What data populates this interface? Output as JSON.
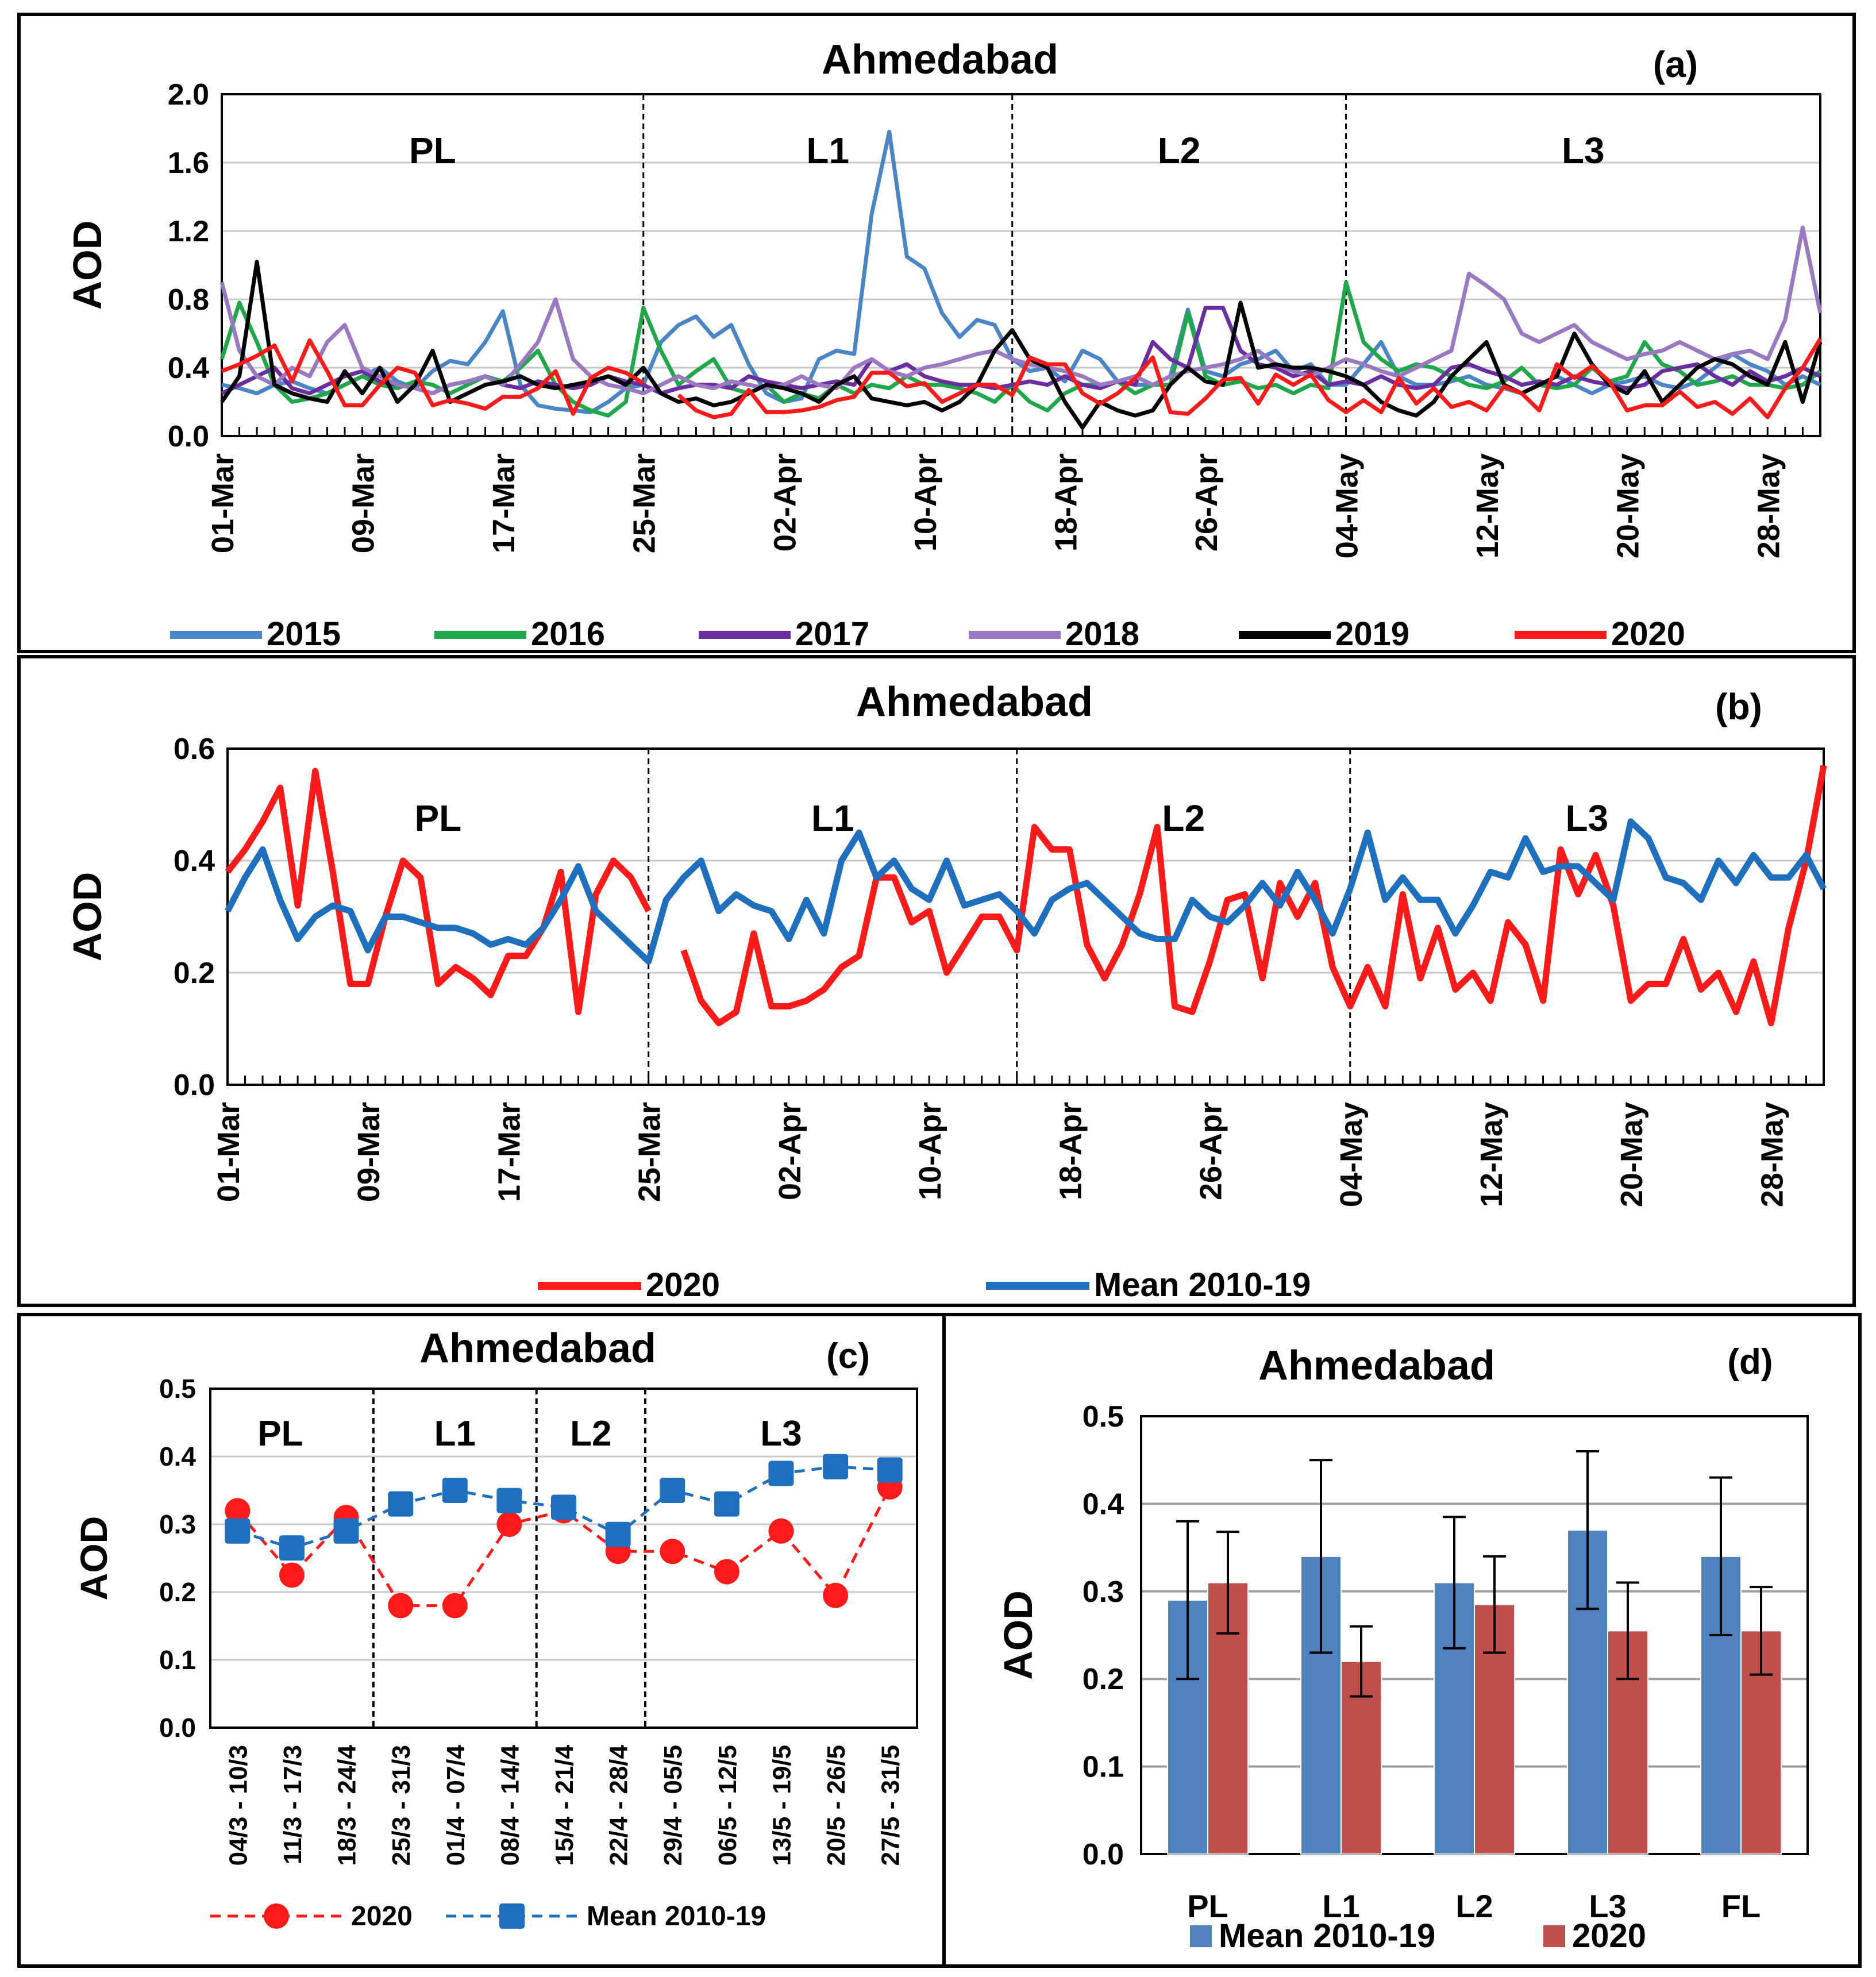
{
  "colors": {
    "c2015": "#4a86c6",
    "c2016": "#1fa84a",
    "c2017": "#6a2ea0",
    "c2018": "#9a78c2",
    "c2019": "#000000",
    "c2020": "#ff1a1a",
    "mean": "#1f6fbf",
    "bar_mean": "#4f81bd",
    "bar_2020": "#c0504d",
    "grid": "#c8c8c8"
  },
  "chart_data": [
    {
      "id": "a",
      "type": "line",
      "title": "Ahmedabad",
      "panel_label": "(a)",
      "ylabel": "AOD",
      "ylim": [
        0,
        2.0
      ],
      "yticks": [
        "0.0",
        "0.4",
        "0.8",
        "1.2",
        "1.6",
        "2.0"
      ],
      "xticks": [
        "01-Mar",
        "09-Mar",
        "17-Mar",
        "25-Mar",
        "02-Apr",
        "10-Apr",
        "18-Apr",
        "26-Apr",
        "04-May",
        "12-May",
        "20-May",
        "28-May"
      ],
      "n_days": 92,
      "phases": [
        "PL",
        "L1",
        "L2",
        "L3"
      ],
      "phase_boundaries": [
        24,
        45,
        64
      ],
      "legend": [
        "2015",
        "2016",
        "2017",
        "2018",
        "2019",
        "2020"
      ],
      "series": [
        {
          "name": "2015",
          "color_key": "c2015",
          "values": [
            0.3,
            0.28,
            0.25,
            0.3,
            0.32,
            0.28,
            0.25,
            0.3,
            0.35,
            0.4,
            0.32,
            0.28,
            0.38,
            0.44,
            0.42,
            0.55,
            0.73,
            0.3,
            0.18,
            0.16,
            0.15,
            0.14,
            0.2,
            0.28,
            0.3,
            0.55,
            0.65,
            0.7,
            0.58,
            0.65,
            0.42,
            0.25,
            0.2,
            0.22,
            0.45,
            0.5,
            0.48,
            1.3,
            1.78,
            1.05,
            0.98,
            0.72,
            0.58,
            0.68,
            0.65,
            0.45,
            0.38,
            0.4,
            0.32,
            0.5,
            0.45,
            0.32,
            0.3,
            0.3,
            0.35,
            0.74,
            0.38,
            0.35,
            0.42,
            0.45,
            0.5,
            0.38,
            0.42,
            0.3,
            0.3,
            0.42,
            0.55,
            0.35,
            0.3,
            0.3,
            0.32,
            0.35,
            0.3,
            0.28,
            0.25,
            0.3,
            0.35,
            0.3,
            0.25,
            0.3,
            0.32,
            0.35,
            0.3,
            0.28,
            0.32,
            0.4,
            0.48,
            0.42,
            0.38,
            0.3,
            0.35,
            0.3
          ]
        },
        {
          "name": "2016",
          "color_key": "c2016",
          "values": [
            0.45,
            0.78,
            0.55,
            0.3,
            0.2,
            0.22,
            0.25,
            0.3,
            0.35,
            0.3,
            0.28,
            0.32,
            0.3,
            0.25,
            0.3,
            0.35,
            0.32,
            0.4,
            0.5,
            0.3,
            0.2,
            0.15,
            0.12,
            0.2,
            0.75,
            0.5,
            0.3,
            0.38,
            0.45,
            0.28,
            0.25,
            0.3,
            0.2,
            0.25,
            0.22,
            0.3,
            0.25,
            0.3,
            0.28,
            0.35,
            0.3,
            0.3,
            0.28,
            0.25,
            0.2,
            0.3,
            0.2,
            0.15,
            0.25,
            0.3,
            0.3,
            0.32,
            0.25,
            0.3,
            0.3,
            0.72,
            0.35,
            0.3,
            0.32,
            0.28,
            0.3,
            0.25,
            0.3,
            0.28,
            0.9,
            0.55,
            0.45,
            0.38,
            0.42,
            0.4,
            0.35,
            0.3,
            0.28,
            0.32,
            0.4,
            0.3,
            0.28,
            0.3,
            0.4,
            0.32,
            0.35,
            0.55,
            0.42,
            0.38,
            0.3,
            0.32,
            0.35,
            0.3,
            0.3,
            0.28,
            0.3,
            0.38
          ]
        },
        {
          "name": "2017",
          "color_key": "c2017",
          "values": [
            0.25,
            0.3,
            0.35,
            0.4,
            0.28,
            0.25,
            0.3,
            0.35,
            0.38,
            0.32,
            0.3,
            0.28,
            0.25,
            0.3,
            0.32,
            0.35,
            0.3,
            0.28,
            0.32,
            0.3,
            0.28,
            0.3,
            0.35,
            0.32,
            0.3,
            0.25,
            0.28,
            0.3,
            0.3,
            0.28,
            0.35,
            0.32,
            0.3,
            0.28,
            0.3,
            0.32,
            0.3,
            0.45,
            0.38,
            0.42,
            0.35,
            0.32,
            0.3,
            0.3,
            0.28,
            0.3,
            0.32,
            0.3,
            0.35,
            0.3,
            0.28,
            0.32,
            0.3,
            0.55,
            0.45,
            0.4,
            0.75,
            0.75,
            0.5,
            0.42,
            0.4,
            0.35,
            0.38,
            0.3,
            0.32,
            0.3,
            0.35,
            0.3,
            0.28,
            0.3,
            0.4,
            0.42,
            0.38,
            0.35,
            0.3,
            0.32,
            0.3,
            0.35,
            0.32,
            0.3,
            0.28,
            0.3,
            0.38,
            0.4,
            0.42,
            0.35,
            0.3,
            0.38,
            0.32,
            0.35,
            0.4,
            0.35
          ]
        },
        {
          "name": "2018",
          "color_key": "c2018",
          "values": [
            0.9,
            0.5,
            0.35,
            0.3,
            0.4,
            0.35,
            0.55,
            0.65,
            0.4,
            0.35,
            0.3,
            0.28,
            0.25,
            0.3,
            0.32,
            0.35,
            0.3,
            0.42,
            0.55,
            0.8,
            0.45,
            0.35,
            0.3,
            0.28,
            0.25,
            0.3,
            0.35,
            0.3,
            0.28,
            0.32,
            0.3,
            0.28,
            0.3,
            0.35,
            0.3,
            0.28,
            0.4,
            0.45,
            0.38,
            0.35,
            0.4,
            0.42,
            0.45,
            0.48,
            0.5,
            0.45,
            0.42,
            0.4,
            0.38,
            0.35,
            0.3,
            0.32,
            0.35,
            0.3,
            0.35,
            0.38,
            0.4,
            0.42,
            0.45,
            0.5,
            0.42,
            0.38,
            0.35,
            0.4,
            0.45,
            0.42,
            0.38,
            0.35,
            0.4,
            0.45,
            0.5,
            0.95,
            0.88,
            0.8,
            0.6,
            0.55,
            0.6,
            0.65,
            0.55,
            0.5,
            0.45,
            0.48,
            0.5,
            0.55,
            0.5,
            0.45,
            0.48,
            0.5,
            0.45,
            0.68,
            1.22,
            0.72
          ]
        },
        {
          "name": "2019",
          "color_key": "c2019",
          "values": [
            0.2,
            0.35,
            1.02,
            0.3,
            0.25,
            0.22,
            0.2,
            0.38,
            0.25,
            0.4,
            0.2,
            0.3,
            0.5,
            0.2,
            0.25,
            0.3,
            0.32,
            0.35,
            0.3,
            0.28,
            0.3,
            0.32,
            0.35,
            0.3,
            0.4,
            0.25,
            0.2,
            0.22,
            0.18,
            0.2,
            0.25,
            0.3,
            0.28,
            0.25,
            0.2,
            0.3,
            0.35,
            0.22,
            0.2,
            0.18,
            0.2,
            0.15,
            0.2,
            0.3,
            0.5,
            0.62,
            0.45,
            0.4,
            0.2,
            0.05,
            0.2,
            0.15,
            0.12,
            0.15,
            0.3,
            0.4,
            0.32,
            0.3,
            0.78,
            0.4,
            0.42,
            0.4,
            0.4,
            0.38,
            0.35,
            0.3,
            0.2,
            0.15,
            0.12,
            0.2,
            0.35,
            0.45,
            0.55,
            0.3,
            0.25,
            0.3,
            0.35,
            0.6,
            0.42,
            0.3,
            0.25,
            0.38,
            0.2,
            0.3,
            0.4,
            0.45,
            0.42,
            0.35,
            0.3,
            0.55,
            0.2,
            0.55
          ]
        },
        {
          "name": "2020",
          "color_key": "c2020",
          "values": [
            0.38,
            0.42,
            0.47,
            0.53,
            0.32,
            0.56,
            0.38,
            0.18,
            0.18,
            0.3,
            0.4,
            0.37,
            0.18,
            0.21,
            0.19,
            0.16,
            0.23,
            0.23,
            0.28,
            0.38,
            0.13,
            0.34,
            0.4,
            0.37,
            0.31,
            null,
            0.24,
            0.15,
            0.11,
            0.13,
            0.27,
            0.14,
            0.14,
            0.15,
            0.17,
            0.21,
            0.23,
            0.37,
            0.37,
            0.29,
            0.31,
            0.2,
            0.25,
            0.3,
            0.3,
            0.24,
            0.46,
            0.42,
            0.42,
            0.25,
            0.19,
            0.25,
            0.34,
            0.46,
            0.14,
            0.13,
            0.22,
            0.33,
            0.34,
            0.19,
            0.36,
            0.3,
            0.36,
            0.21,
            0.14,
            0.21,
            0.14,
            0.34,
            0.19,
            0.28,
            0.17,
            0.2,
            0.15,
            0.29,
            0.25,
            0.15,
            0.42,
            0.34,
            0.41,
            0.32,
            0.15,
            0.18,
            0.18,
            0.26,
            0.17,
            0.2,
            0.13,
            0.22,
            0.11,
            0.28,
            0.4,
            0.57
          ]
        }
      ]
    },
    {
      "id": "b",
      "type": "line",
      "title": "Ahmedabad",
      "panel_label": "(b)",
      "ylabel": "AOD",
      "ylim": [
        0,
        0.6
      ],
      "yticks": [
        "0.0",
        "0.2",
        "0.4",
        "0.6"
      ],
      "xticks": [
        "01-Mar",
        "09-Mar",
        "17-Mar",
        "25-Mar",
        "02-Apr",
        "10-Apr",
        "18-Apr",
        "26-Apr",
        "04-May",
        "12-May",
        "20-May",
        "28-May"
      ],
      "n_days": 92,
      "phases": [
        "PL",
        "L1",
        "L2",
        "L3"
      ],
      "phase_boundaries": [
        24,
        45,
        64
      ],
      "legend": [
        "2020",
        "Mean 2010-19"
      ],
      "series": [
        {
          "name": "2020",
          "color_key": "c2020",
          "values": [
            0.38,
            0.42,
            0.47,
            0.53,
            0.32,
            0.56,
            0.38,
            0.18,
            0.18,
            0.3,
            0.4,
            0.37,
            0.18,
            0.21,
            0.19,
            0.16,
            0.23,
            0.23,
            0.28,
            0.38,
            0.13,
            0.34,
            0.4,
            0.37,
            0.31,
            null,
            0.24,
            0.15,
            0.11,
            0.13,
            0.27,
            0.14,
            0.14,
            0.15,
            0.17,
            0.21,
            0.23,
            0.37,
            0.37,
            0.29,
            0.31,
            0.2,
            0.25,
            0.3,
            0.3,
            0.24,
            0.46,
            0.42,
            0.42,
            0.25,
            0.19,
            0.25,
            0.34,
            0.46,
            0.14,
            0.13,
            0.22,
            0.33,
            0.34,
            0.19,
            0.36,
            0.3,
            0.36,
            0.21,
            0.14,
            0.21,
            0.14,
            0.34,
            0.19,
            0.28,
            0.17,
            0.2,
            0.15,
            0.29,
            0.25,
            0.15,
            0.42,
            0.34,
            0.41,
            0.32,
            0.15,
            0.18,
            0.18,
            0.26,
            0.17,
            0.2,
            0.13,
            0.22,
            0.11,
            0.28,
            0.4,
            0.57
          ]
        },
        {
          "name": "Mean 2010-19",
          "color_key": "mean",
          "values": [
            0.31,
            0.37,
            0.42,
            0.33,
            0.26,
            0.3,
            0.32,
            0.31,
            0.24,
            0.3,
            0.3,
            0.29,
            0.28,
            0.28,
            0.27,
            0.25,
            0.26,
            0.25,
            0.28,
            0.33,
            0.39,
            0.31,
            0.28,
            0.25,
            0.22,
            0.33,
            0.37,
            0.4,
            0.31,
            0.34,
            0.32,
            0.31,
            0.26,
            0.33,
            0.27,
            0.4,
            0.45,
            0.37,
            0.4,
            0.35,
            0.33,
            0.4,
            0.32,
            0.33,
            0.34,
            0.31,
            0.27,
            0.33,
            0.35,
            0.36,
            0.33,
            0.3,
            0.27,
            0.26,
            0.26,
            0.33,
            0.3,
            0.29,
            0.32,
            0.36,
            0.32,
            0.38,
            0.33,
            0.27,
            0.35,
            0.45,
            0.33,
            0.37,
            0.33,
            0.33,
            0.27,
            0.32,
            0.38,
            0.37,
            0.44,
            0.38,
            0.39,
            0.39,
            0.36,
            0.33,
            0.47,
            0.44,
            0.37,
            0.36,
            0.33,
            0.4,
            0.36,
            0.41,
            0.37,
            0.37,
            0.41,
            0.35
          ]
        }
      ]
    },
    {
      "id": "c",
      "type": "line",
      "title": "Ahmedabad",
      "panel_label": "(c)",
      "ylabel": "AOD",
      "ylim": [
        0,
        0.5
      ],
      "yticks": [
        "0.0",
        "0.1",
        "0.2",
        "0.3",
        "0.4",
        "0.5"
      ],
      "categories": [
        "04/3 - 10/3",
        "11/3 - 17/3",
        "18/3 - 24/4",
        "25/3 - 31/3",
        "01/4 - 07/4",
        "08/4 - 14/4",
        "15/4 - 21/4",
        "22/4 - 28/4",
        "29/4 - 05/5",
        "06/5 - 12/5",
        "13/5 - 19/5",
        "20/5 - 26/5",
        "27/5 - 31/5"
      ],
      "phases": [
        "PL",
        "L1",
        "L2",
        "L3"
      ],
      "phase_boundaries": [
        2.5,
        5.5,
        7.5
      ],
      "legend": [
        "2020",
        "Mean 2010-19"
      ],
      "series": [
        {
          "name": "2020",
          "color_key": "c2020",
          "marker": "circle",
          "values": [
            0.32,
            0.225,
            0.31,
            0.18,
            0.18,
            0.3,
            0.32,
            0.26,
            0.26,
            0.23,
            0.29,
            0.195,
            0.355
          ]
        },
        {
          "name": "Mean 2010-19",
          "color_key": "mean",
          "marker": "square",
          "values": [
            0.29,
            0.265,
            0.29,
            0.33,
            0.35,
            0.335,
            0.325,
            0.285,
            0.35,
            0.33,
            0.375,
            0.385,
            0.38
          ]
        }
      ]
    },
    {
      "id": "d",
      "type": "bar",
      "title": "Ahmedabad",
      "panel_label": "(d)",
      "ylabel": "AOD",
      "ylim": [
        0,
        0.5
      ],
      "yticks": [
        "0.0",
        "0.1",
        "0.2",
        "0.3",
        "0.4",
        "0.5"
      ],
      "categories": [
        "PL",
        "L1",
        "L2",
        "L3",
        "FL"
      ],
      "legend": [
        "Mean 2010-19",
        "2020"
      ],
      "series": [
        {
          "name": "Mean 2010-19",
          "color_key": "bar_mean",
          "values": [
            0.29,
            0.34,
            0.31,
            0.37,
            0.34
          ],
          "err": [
            0.09,
            0.11,
            0.075,
            0.09,
            0.09
          ]
        },
        {
          "name": "2020",
          "color_key": "bar_2020",
          "values": [
            0.31,
            0.22,
            0.285,
            0.255,
            0.255
          ],
          "err": [
            0.058,
            0.04,
            0.055,
            0.055,
            0.05
          ]
        }
      ]
    }
  ]
}
